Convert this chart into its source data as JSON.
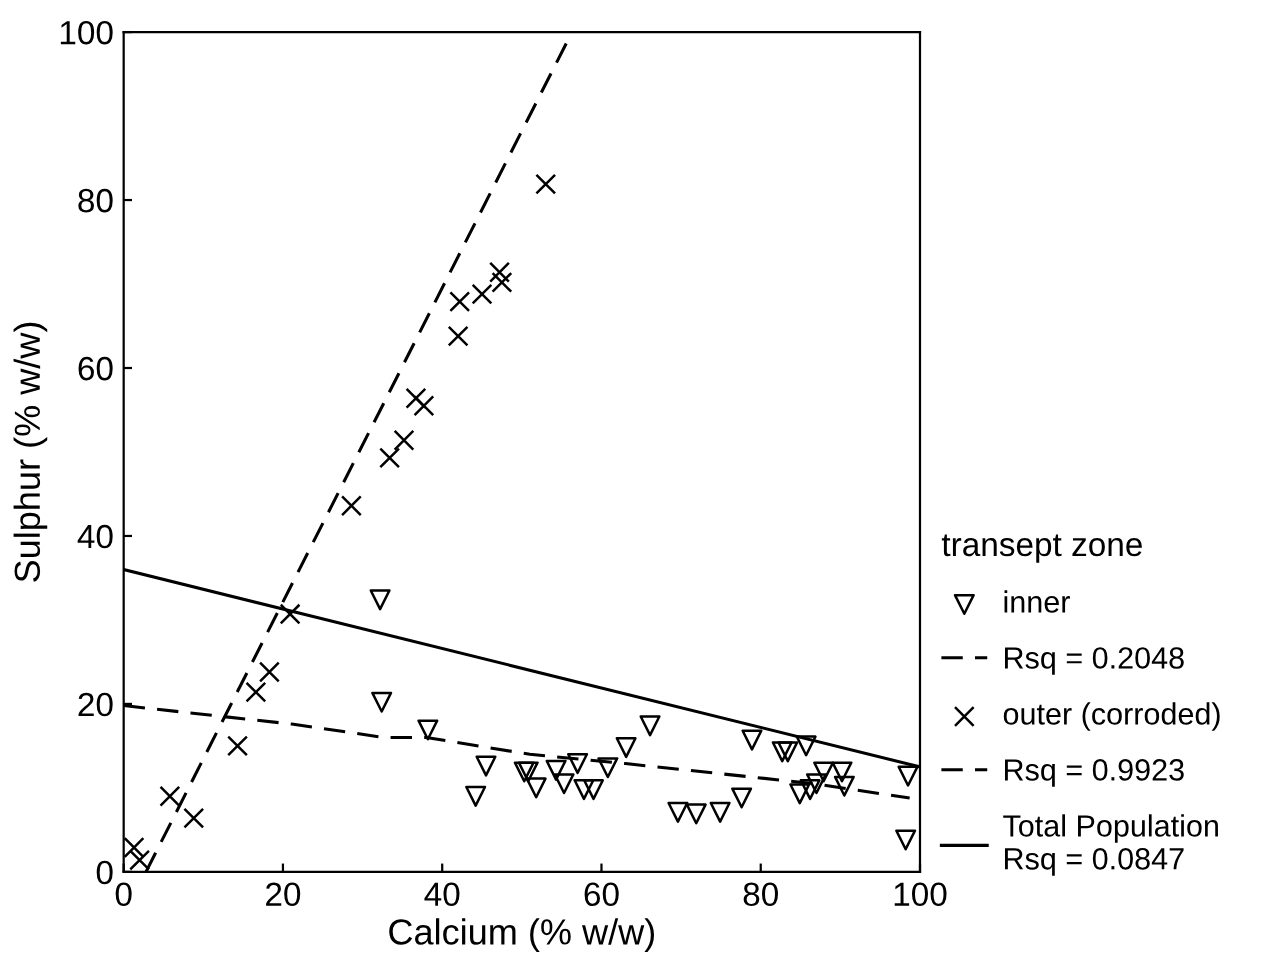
{
  "chart_data": {
    "type": "scatter",
    "xlabel": "Calcium (% w/w)",
    "ylabel": "Sulphur (% w/w)",
    "legend_title": "transept zone",
    "xlim": [
      0,
      100
    ],
    "ylim": [
      0,
      100
    ],
    "xticks": [
      0,
      20,
      40,
      60,
      80,
      100
    ],
    "yticks": [
      0,
      20,
      40,
      60,
      80,
      100
    ],
    "grid": false,
    "legend": "right",
    "series": [
      {
        "name": "inner",
        "marker": "triangle",
        "color": "#000000",
        "x": [
          32.2,
          32.4,
          38.2,
          45.5,
          44.2,
          50.3,
          50.8,
          51.8,
          54.3,
          55.3,
          57.0,
          57.8,
          59.0,
          60.8,
          63.1,
          66.1,
          69.6,
          71.9,
          74.9,
          77.6,
          78.9,
          82.7,
          83.4,
          85.7,
          84.9,
          86.2,
          87.0,
          87.9,
          90.2,
          90.5,
          98.5,
          98.2
        ],
        "values": [
          32.4,
          20.2,
          16.9,
          12.6,
          9.0,
          11.9,
          11.9,
          10.0,
          12.1,
          10.5,
          12.9,
          9.8,
          9.8,
          12.4,
          14.8,
          17.4,
          7.1,
          6.9,
          7.1,
          8.8,
          15.7,
          14.3,
          14.3,
          15.0,
          9.3,
          9.8,
          10.5,
          11.9,
          11.9,
          10.2,
          11.4,
          3.8
        ]
      },
      {
        "name": "outer (corroded)",
        "marker": "cross",
        "color": "#000000",
        "x": [
          1.3,
          2.0,
          5.8,
          8.8,
          14.3,
          16.6,
          18.3,
          20.9,
          28.6,
          33.4,
          35.2,
          36.7,
          37.7,
          42.0,
          42.2,
          45.0,
          47.5,
          47.2,
          53.0
        ],
        "values": [
          2.9,
          1.4,
          9.0,
          6.4,
          15.0,
          21.4,
          23.8,
          30.7,
          43.6,
          49.3,
          51.4,
          56.4,
          55.5,
          63.8,
          67.9,
          68.8,
          70.2,
          71.4,
          81.9
        ]
      },
      {
        "name": "Rsq = 0.2048",
        "type": "line",
        "line_style": "dashed",
        "color": "#000000",
        "x": [
          0,
          21.1,
          32.7,
          38,
          51,
          63,
          86.7,
          98.7
        ],
        "values": [
          19.8,
          17.6,
          16.0,
          16.0,
          14.0,
          12.9,
          10.5,
          8.8
        ]
      },
      {
        "name": "Rsq = 0.9923",
        "type": "line",
        "line_style": "dashed",
        "color": "#000000",
        "x": [
          2.8,
          56.3
        ],
        "values": [
          0,
          100
        ]
      },
      {
        "name": "Total Population\nRsq = 0.0847",
        "type": "line",
        "line_style": "solid",
        "color": "#000000",
        "x": [
          0,
          100
        ],
        "values": [
          36.0,
          12.5
        ]
      }
    ]
  }
}
